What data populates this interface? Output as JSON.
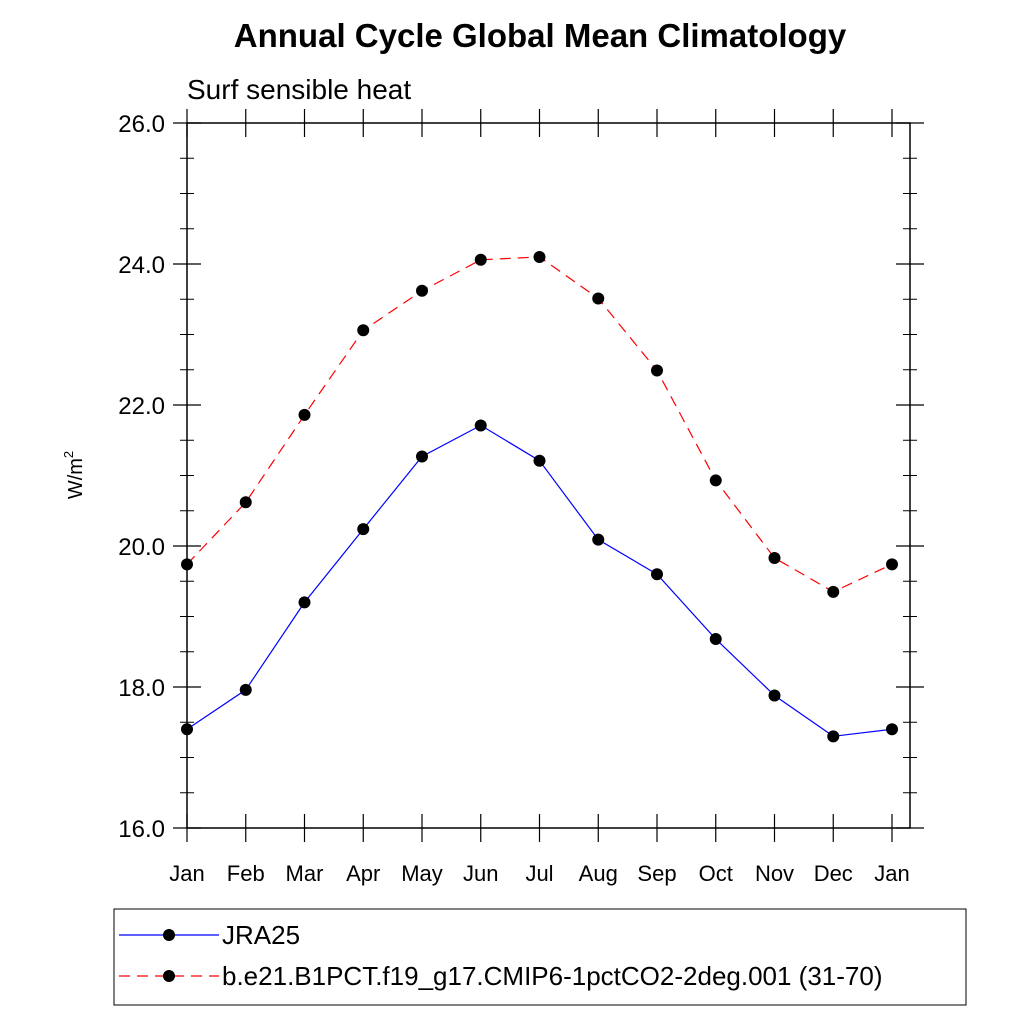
{
  "chart_data": {
    "type": "line",
    "title": "Annual Cycle Global Mean Climatology",
    "subtitle": "Surf sensible heat",
    "ylabel": "W/m",
    "ylabel_superscript": "2",
    "xlabel": "",
    "categories": [
      "Jan",
      "Feb",
      "Mar",
      "Apr",
      "May",
      "Jun",
      "Jul",
      "Aug",
      "Sep",
      "Oct",
      "Nov",
      "Dec",
      "Jan"
    ],
    "ylim": [
      16.0,
      26.0
    ],
    "y_ticks": [
      "16.0",
      "18.0",
      "20.0",
      "22.0",
      "24.0",
      "26.0"
    ],
    "grid": false,
    "legend_position": "bottom",
    "series": [
      {
        "name": "JRA25",
        "color": "#0000ff",
        "line_style": "solid",
        "marker": "filled-circle",
        "values": [
          17.4,
          17.96,
          19.2,
          20.24,
          21.27,
          21.71,
          21.21,
          20.09,
          19.6,
          18.68,
          17.88,
          17.3,
          17.4
        ]
      },
      {
        "name": "b.e21.B1PCT.f19_g17.CMIP6-1pctCO2-2deg.001 (31-70)",
        "color": "#ff0000",
        "line_style": "dashed",
        "marker": "filled-circle",
        "values": [
          19.74,
          20.62,
          21.86,
          23.06,
          23.62,
          24.06,
          24.1,
          23.51,
          22.49,
          20.93,
          19.83,
          19.35,
          19.74
        ]
      }
    ]
  }
}
